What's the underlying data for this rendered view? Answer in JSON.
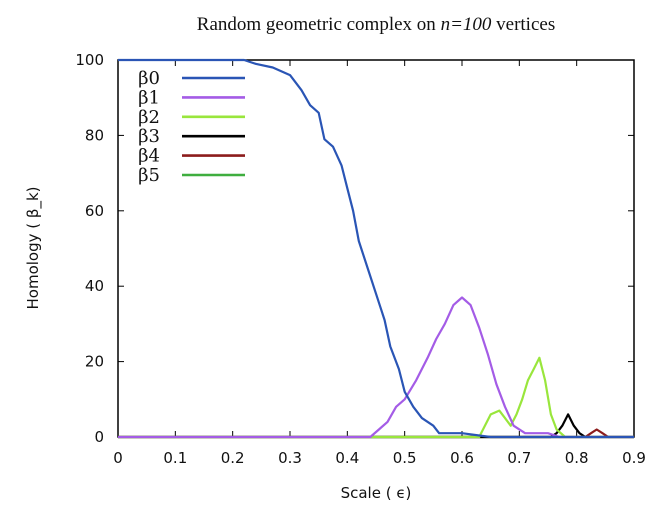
{
  "chart_data": {
    "type": "line",
    "title": "Random geometric complex on n=100 vertices",
    "xlabel": "Scale ( ϵ)",
    "ylabel": "Homology ( β_k)",
    "xlim": [
      0,
      0.9
    ],
    "ylim": [
      0,
      100
    ],
    "x_ticks": [
      "0",
      "0.1",
      "0.2",
      "0.3",
      "0.4",
      "0.5",
      "0.6",
      "0.7",
      "0.8",
      "0.9"
    ],
    "y_ticks": [
      "0",
      "20",
      "40",
      "60",
      "80",
      "100"
    ],
    "grid": false,
    "legend_position": "top-left",
    "series": [
      {
        "name": "β0",
        "color": "#2a55b5",
        "points": [
          [
            0,
            100
          ],
          [
            0.22,
            100
          ],
          [
            0.24,
            99
          ],
          [
            0.27,
            98
          ],
          [
            0.3,
            96
          ],
          [
            0.32,
            92
          ],
          [
            0.335,
            88
          ],
          [
            0.35,
            86
          ],
          [
            0.36,
            79
          ],
          [
            0.375,
            77
          ],
          [
            0.39,
            72
          ],
          [
            0.4,
            66
          ],
          [
            0.41,
            60
          ],
          [
            0.42,
            52
          ],
          [
            0.435,
            45
          ],
          [
            0.45,
            38
          ],
          [
            0.465,
            31
          ],
          [
            0.475,
            24
          ],
          [
            0.49,
            18
          ],
          [
            0.5,
            12
          ],
          [
            0.515,
            8
          ],
          [
            0.53,
            5
          ],
          [
            0.55,
            3
          ],
          [
            0.56,
            1
          ],
          [
            0.6,
            1
          ],
          [
            0.65,
            0
          ],
          [
            0.9,
            0
          ]
        ]
      },
      {
        "name": "β1",
        "color": "#a45ce6",
        "points": [
          [
            0,
            0
          ],
          [
            0.44,
            0
          ],
          [
            0.455,
            2
          ],
          [
            0.47,
            4
          ],
          [
            0.485,
            8
          ],
          [
            0.5,
            10
          ],
          [
            0.52,
            15
          ],
          [
            0.54,
            21
          ],
          [
            0.555,
            26
          ],
          [
            0.57,
            30
          ],
          [
            0.585,
            35
          ],
          [
            0.6,
            37
          ],
          [
            0.615,
            35
          ],
          [
            0.63,
            29
          ],
          [
            0.645,
            22
          ],
          [
            0.66,
            14
          ],
          [
            0.675,
            8
          ],
          [
            0.69,
            3
          ],
          [
            0.71,
            1
          ],
          [
            0.75,
            1
          ],
          [
            0.77,
            0
          ],
          [
            0.9,
            0
          ]
        ]
      },
      {
        "name": "β2",
        "color": "#99e63c",
        "points": [
          [
            0,
            0
          ],
          [
            0.63,
            0
          ],
          [
            0.64,
            3
          ],
          [
            0.65,
            6
          ],
          [
            0.665,
            7
          ],
          [
            0.675,
            5
          ],
          [
            0.685,
            3
          ],
          [
            0.695,
            6
          ],
          [
            0.705,
            10
          ],
          [
            0.715,
            15
          ],
          [
            0.725,
            18
          ],
          [
            0.735,
            21
          ],
          [
            0.745,
            15
          ],
          [
            0.755,
            6
          ],
          [
            0.765,
            2
          ],
          [
            0.78,
            0
          ],
          [
            0.9,
            0
          ]
        ]
      },
      {
        "name": "β3",
        "color": "#000000",
        "points": [
          [
            0,
            0
          ],
          [
            0.755,
            0
          ],
          [
            0.765,
            1
          ],
          [
            0.775,
            3
          ],
          [
            0.785,
            6
          ],
          [
            0.795,
            3
          ],
          [
            0.805,
            1
          ],
          [
            0.815,
            0
          ],
          [
            0.9,
            0
          ]
        ]
      },
      {
        "name": "β4",
        "color": "#8c1c1c",
        "points": [
          [
            0,
            0
          ],
          [
            0.815,
            0
          ],
          [
            0.825,
            1
          ],
          [
            0.835,
            2
          ],
          [
            0.845,
            1
          ],
          [
            0.855,
            0
          ],
          [
            0.9,
            0
          ]
        ]
      },
      {
        "name": "β5",
        "color": "#3fae3f",
        "points": [
          [
            0,
            0
          ],
          [
            0.9,
            0
          ]
        ]
      }
    ]
  }
}
